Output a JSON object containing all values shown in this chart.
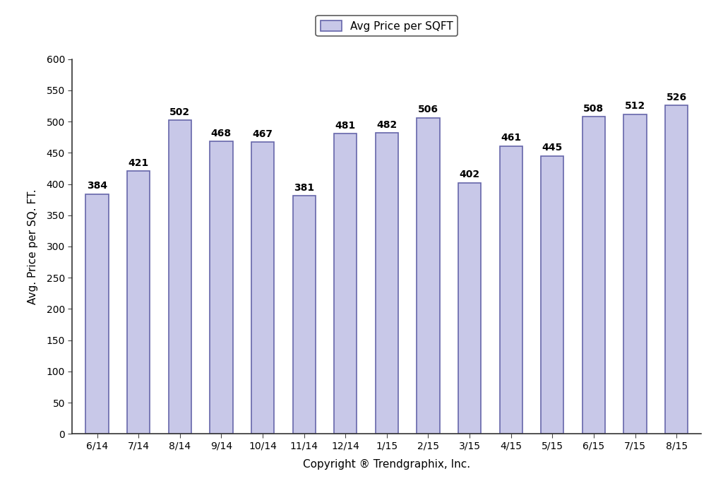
{
  "categories": [
    "6/14",
    "7/14",
    "8/14",
    "9/14",
    "10/14",
    "11/14",
    "12/14",
    "1/15",
    "2/15",
    "3/15",
    "4/15",
    "5/15",
    "6/15",
    "7/15",
    "8/15"
  ],
  "values": [
    384,
    421,
    502,
    468,
    467,
    381,
    481,
    482,
    506,
    402,
    461,
    445,
    508,
    512,
    526
  ],
  "bar_color": "#c8c8e8",
  "bar_edge_color": "#6666aa",
  "bar_edge_width": 1.2,
  "ylabel": "Avg. Price per SQ. FT.",
  "xlabel": "Copyright ® Trendgraphix, Inc.",
  "legend_label": "Avg Price per SQFT",
  "ylim": [
    0,
    600
  ],
  "yticks": [
    0,
    50,
    100,
    150,
    200,
    250,
    300,
    350,
    400,
    450,
    500,
    550,
    600
  ],
  "label_fontsize": 11,
  "tick_fontsize": 10,
  "annotation_fontsize": 10,
  "background_color": "#ffffff",
  "bar_width": 0.55
}
